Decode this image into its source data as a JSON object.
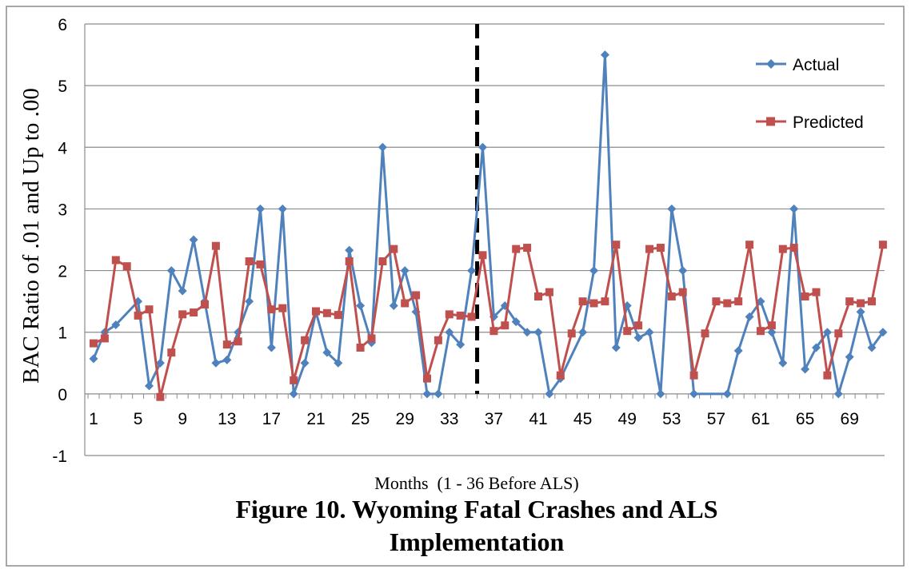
{
  "chart_data": {
    "type": "line",
    "title": "Figure 10. Wyoming Fatal Crashes and ALS Implementation",
    "title_lines": [
      "Figure 10. Wyoming Fatal Crashes and ALS",
      "Implementation"
    ],
    "xlabel": "Months  (1 - 36 Before ALS)",
    "ylabel": "BAC Ratio of .01 and Up to .00",
    "ylim": [
      -1,
      6
    ],
    "yticks": [
      "-1",
      "0",
      "1",
      "2",
      "3",
      "4",
      "5",
      "6"
    ],
    "xlim": [
      1,
      72
    ],
    "xticks": [
      "1",
      "5",
      "9",
      "13",
      "17",
      "21",
      "25",
      "29",
      "33",
      "37",
      "41",
      "45",
      "49",
      "53",
      "57",
      "61",
      "65",
      "69"
    ],
    "grid": true,
    "legend_position": "top-right",
    "reference_line": {
      "x": 35.5,
      "style": "dashed",
      "color": "#000000"
    },
    "series": [
      {
        "name": "Actual",
        "color": "#4F81BD",
        "marker": "diamond",
        "values": [
          0.57,
          1.0,
          1.12,
          null,
          1.5,
          0.13,
          0.5,
          2.0,
          1.67,
          2.5,
          1.5,
          0.5,
          0.55,
          1.0,
          1.5,
          3.0,
          0.75,
          3.0,
          0.0,
          0.5,
          1.33,
          0.67,
          0.5,
          2.33,
          1.43,
          0.83,
          4.0,
          1.43,
          2.0,
          1.33,
          0.0,
          0.0,
          1.0,
          0.8,
          2.0,
          4.0,
          1.25,
          1.43,
          1.17,
          1.0,
          1.0,
          0.0,
          0.25,
          null,
          1.0,
          2.0,
          5.5,
          0.75,
          1.43,
          0.91,
          1.0,
          0.0,
          3.0,
          2.0,
          0.0,
          null,
          null,
          0.0,
          0.7,
          1.25,
          1.5,
          1.0,
          0.5,
          3.0,
          0.4,
          0.75,
          1.0,
          0.0,
          0.6,
          1.33,
          0.75,
          1.0
        ]
      },
      {
        "name": "Predicted",
        "color": "#C0504D",
        "marker": "square",
        "values": [
          0.82,
          0.9,
          2.17,
          2.07,
          1.27,
          1.37,
          -0.05,
          0.67,
          1.29,
          1.32,
          1.45,
          2.4,
          0.8,
          0.85,
          2.15,
          2.1,
          1.37,
          1.39,
          0.22,
          0.87,
          1.34,
          1.31,
          1.28,
          2.15,
          0.75,
          0.9,
          2.15,
          2.35,
          1.47,
          1.6,
          0.25,
          0.87,
          1.29,
          1.27,
          1.25,
          2.25,
          1.02,
          1.11,
          2.35,
          2.37,
          1.58,
          1.65,
          0.3,
          0.98,
          1.5,
          1.47,
          1.5,
          2.42,
          1.02,
          1.11,
          2.35,
          2.37,
          1.58,
          1.65,
          0.3,
          0.98,
          1.5,
          1.47,
          1.5,
          2.42,
          1.02,
          1.11,
          2.35,
          2.37,
          1.58,
          1.65,
          0.3,
          0.98,
          1.5,
          1.47,
          1.5,
          2.42
        ]
      }
    ]
  }
}
